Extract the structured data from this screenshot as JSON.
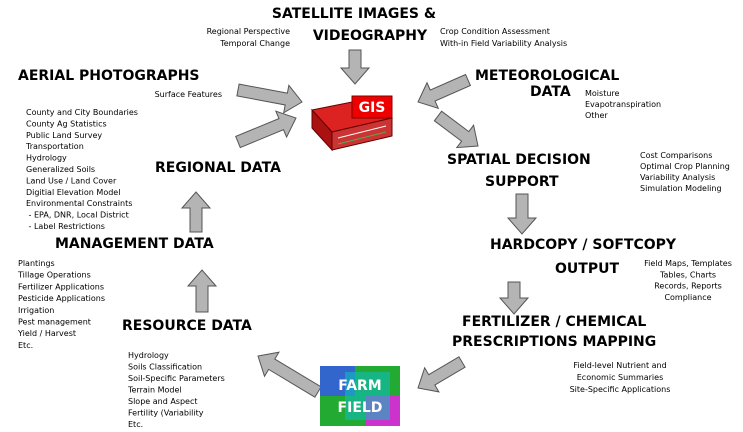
{
  "center": {
    "label": "GIS"
  },
  "farm": {
    "label": [
      "FARM",
      "FIELD"
    ]
  },
  "nodes": [
    {
      "title": [
        "SATELLITE IMAGES &",
        "VIDEOGRAPHY"
      ],
      "notes_left": [
        "Regional Perspective",
        "Temporal Change"
      ],
      "notes": [
        "Crop Condition Assessment",
        "With-in Field Variability Analysis"
      ]
    },
    {
      "title": [
        "METEOROLOGICAL",
        "DATA"
      ],
      "notes": [
        "Moisture",
        "Evapotranspiration",
        "Other"
      ]
    },
    {
      "title": [
        "SPATIAL DECISION",
        "SUPPORT"
      ],
      "notes": [
        "Cost Comparisons",
        "Optimal Crop Planning",
        "Variability Analysis",
        "Simulation Modeling"
      ]
    },
    {
      "title": [
        "HARDCOPY / SOFTCOPY",
        "OUTPUT"
      ],
      "notes": [
        "Field Maps, Templates",
        "Tables, Charts",
        "Records, Reports",
        "Compliance"
      ]
    },
    {
      "title": [
        "FERTILIZER / CHEMICAL",
        "PRESCRIPTIONS MAPPING"
      ],
      "notes": [
        "Field-level Nutrient and",
        "Economic Summaries",
        "Site-Specific Applications"
      ]
    },
    {
      "title": [
        "RESOURCE DATA"
      ],
      "notes": [
        "Hydrology",
        "Soils Classification",
        "Soil-Specific Parameters",
        "Terrain Model",
        "Slope and Aspect",
        "Fertility (Variability",
        "Etc."
      ]
    },
    {
      "title": [
        "MANAGEMENT DATA"
      ],
      "notes": [
        "Plantings",
        "Tillage Operations",
        "Fertilizer Applications",
        "Pesticide Applications",
        "Irrigation",
        "Pest management",
        "Yield / Harvest",
        "Etc."
      ]
    },
    {
      "title": [
        "REGIONAL DATA"
      ],
      "notes": [
        "County and City Boundaries",
        "County Ag Statistics",
        "Public Land Survey",
        "Transportation",
        "Hydrology",
        "Generalized Soils",
        "Land Use / Land Cover",
        "Digitial Elevation Model",
        "Environmental Constraints",
        " - EPA, DNR, Local District",
        " - Label Restrictions"
      ]
    },
    {
      "title": [
        "AERIAL PHOTOGRAPHS"
      ],
      "notes": [
        "Surface Features"
      ]
    }
  ]
}
